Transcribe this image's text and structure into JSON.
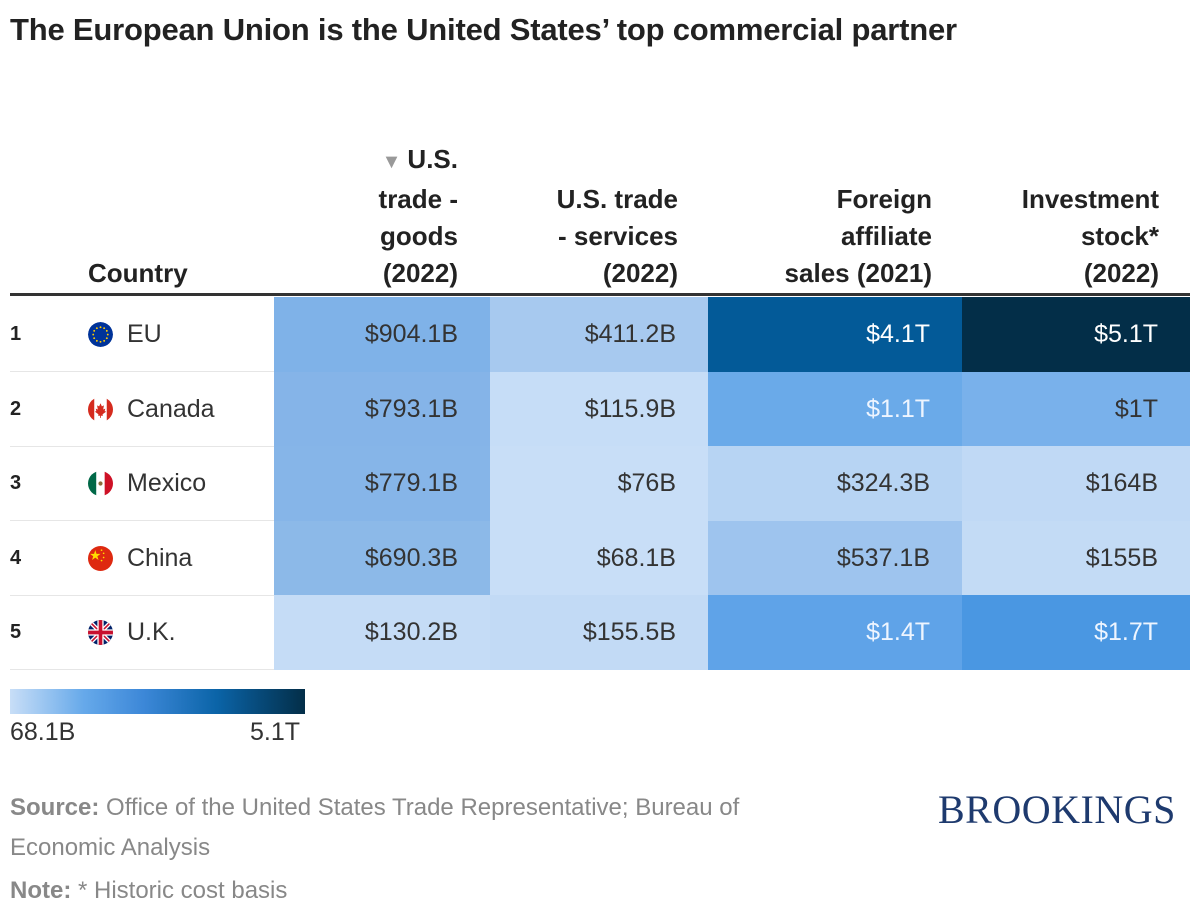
{
  "title": "The European Union is the United States’ top commercial partner",
  "chart_data": {
    "type": "table",
    "columns": [
      "Country",
      "U.S. trade - goods (2022)",
      "U.S. trade - services (2022)",
      "Foreign affiliate sales (2021)",
      "Investment stock* (2022)"
    ],
    "header_lines": {
      "country": [
        "Country"
      ],
      "goods": [
        "U.S.",
        "trade -",
        "goods",
        "(2022)"
      ],
      "services": [
        "U.S. trade",
        "- services",
        "(2022)"
      ],
      "affiliate": [
        "Foreign",
        "affiliate",
        "sales (2021)"
      ],
      "stock": [
        "Investment",
        "stock*",
        "(2022)"
      ]
    },
    "sorted_by": "U.S. trade - goods (2022)",
    "sort_direction": "descending",
    "rows": [
      {
        "rank": "1",
        "country": "EU",
        "flag": "eu-flag-icon",
        "goods": "$904.1B",
        "services": "$411.2B",
        "affiliate": "$4.1T",
        "stock": "$5.1T",
        "colors": [
          "#7fb2e8",
          "#a7c9ef",
          "#035a98",
          "#032e48"
        ],
        "text": [
          "#333",
          "#333",
          "#fff",
          "#fff"
        ]
      },
      {
        "rank": "2",
        "country": "Canada",
        "flag": "canada-flag-icon",
        "goods": "$793.1B",
        "services": "$115.9B",
        "affiliate": "$1.1T",
        "stock": "$1T",
        "colors": [
          "#85b4e8",
          "#c6ddf7",
          "#6aaae9",
          "#79b1eb"
        ],
        "text": [
          "#333",
          "#333",
          "#eef5ff",
          "#333"
        ]
      },
      {
        "rank": "3",
        "country": "Mexico",
        "flag": "mexico-flag-icon",
        "goods": "$779.1B",
        "services": "$76B",
        "affiliate": "$324.3B",
        "stock": "$164B",
        "colors": [
          "#86b5e8",
          "#c8def7",
          "#b7d4f3",
          "#c0d9f5"
        ],
        "text": [
          "#333",
          "#333",
          "#333",
          "#333"
        ]
      },
      {
        "rank": "4",
        "country": "China",
        "flag": "china-flag-icon",
        "goods": "$690.3B",
        "services": "$68.1B",
        "affiliate": "$537.1B",
        "stock": "$155B",
        "colors": [
          "#8cb9e8",
          "#c8def7",
          "#9ec4ee",
          "#c3dbf5"
        ],
        "text": [
          "#333",
          "#333",
          "#333",
          "#333"
        ]
      },
      {
        "rank": "5",
        "country": "U.K.",
        "flag": "uk-flag-icon",
        "goods": "$130.2B",
        "services": "$155.5B",
        "affiliate": "$1.4T",
        "stock": "$1.7T",
        "colors": [
          "#c5dcf6",
          "#c2daf5",
          "#5fa3e8",
          "#4a97e2"
        ],
        "text": [
          "#333",
          "#333",
          "#eef5ff",
          "#eef5ff"
        ]
      }
    ],
    "legend": {
      "min_label": "68.1B",
      "max_label": "5.1T",
      "colors": [
        "#c8def7",
        "#032e48"
      ]
    }
  },
  "footer": {
    "source_label": "Source:",
    "source_text": " Office of the United States Trade Representative; Bureau of",
    "source_text2": "Economic Analysis",
    "note_label": "Note:",
    "note_text": " * Historic cost basis"
  },
  "logo": "BROOKINGS"
}
